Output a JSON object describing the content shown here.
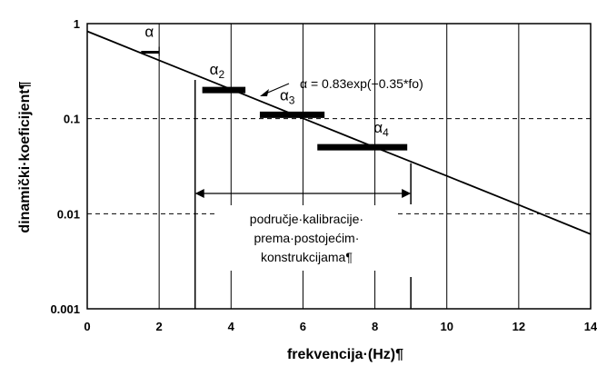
{
  "chart_data": {
    "type": "line",
    "xlabel": "frekvencija·(Hz)¶",
    "ylabel": "dinamički·koeficijent¶",
    "x_ticks": [
      "0",
      "2",
      "4",
      "6",
      "8",
      "10",
      "12",
      "14"
    ],
    "y_ticks": [
      "0.001",
      "0.01",
      "0.1",
      "1"
    ],
    "xlim": [
      0,
      14
    ],
    "ylim": [
      0.001,
      1
    ],
    "y_scale": "log",
    "grid": {
      "major_x": "solid",
      "major_y": "dashed"
    },
    "series": [
      {
        "type": "line",
        "formula_label": "α = 0.83exp(−0.35*fo)",
        "x": [
          0,
          2,
          4,
          6,
          8,
          10,
          12,
          14
        ],
        "y": [
          0.83,
          0.4112,
          0.2037,
          0.1009,
          0.05,
          0.025,
          0.0124,
          0.0061
        ]
      }
    ],
    "steps": [
      {
        "label": "α",
        "subscript": "",
        "x0": 1.5,
        "x1": 2.0,
        "y": 0.5
      },
      {
        "label": "α",
        "subscript": "2",
        "x0": 3.2,
        "x1": 4.4,
        "y": 0.2
      },
      {
        "label": "α",
        "subscript": "3",
        "x0": 4.8,
        "x1": 6.6,
        "y": 0.11
      },
      {
        "label": "α",
        "subscript": "4",
        "x0": 6.4,
        "x1": 8.9,
        "y": 0.05
      }
    ],
    "calibration_range": {
      "x0": 3.0,
      "x1": 9.0,
      "lines": [
        "područje·kalibracije·",
        "prema·postojećim·",
        "konstrukcijama¶"
      ]
    }
  }
}
